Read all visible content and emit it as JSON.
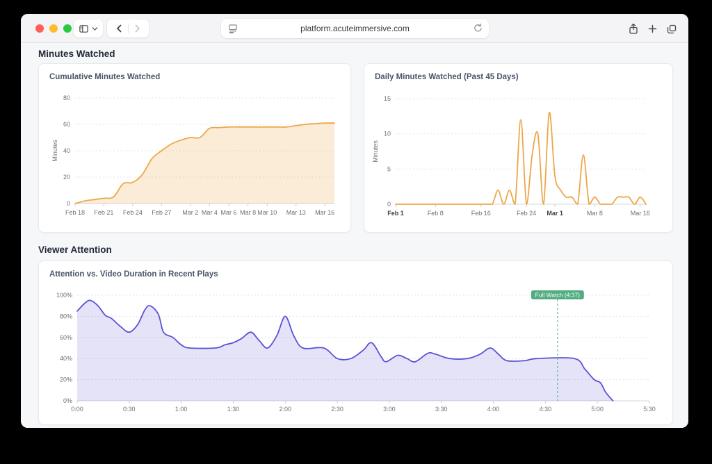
{
  "browser": {
    "url": "platform.acuteimmersive.com",
    "icons": [
      "sidebar-icon",
      "chevron-down-icon",
      "back-icon",
      "forward-icon",
      "page-settings-icon",
      "reload-icon",
      "share-icon",
      "new-tab-icon",
      "tab-overview-icon"
    ],
    "traffic_light_colors": {
      "close": "#ff5f57",
      "minimize": "#febc2e",
      "zoom": "#28c840"
    }
  },
  "sections": [
    {
      "title": "Minutes Watched"
    },
    {
      "title": "Viewer Attention"
    }
  ],
  "colors": {
    "accent_orange": "#eda74a",
    "accent_orange_fill": "rgba(237,167,74,0.22)",
    "accent_purple": "#5a52d6",
    "accent_purple_fill": "rgba(90,82,214,0.16)",
    "badge_green": "#52ad82"
  },
  "chart_data": [
    {
      "id": "cumulative",
      "type": "area",
      "title": "Cumulative Minutes Watched",
      "ylabel": "Minutes",
      "yticks": [
        0,
        20,
        40,
        60,
        80
      ],
      "ylim": [
        0,
        84
      ],
      "categories": [
        "Feb 18",
        "Feb 19",
        "Feb 20",
        "Feb 21",
        "Feb 22",
        "Feb 23",
        "Feb 24",
        "Feb 25",
        "Feb 26",
        "Feb 27",
        "Feb 28",
        "Mar 1",
        "Mar 2",
        "Mar 3",
        "Mar 4",
        "Mar 5",
        "Mar 6",
        "Mar 7",
        "Mar 8",
        "Mar 9",
        "Mar 10",
        "Mar 11",
        "Mar 12",
        "Mar 13",
        "Mar 14",
        "Mar 15",
        "Mar 16",
        "Mar 17"
      ],
      "values": [
        0,
        2,
        3,
        4,
        5,
        15,
        16,
        22,
        34,
        40,
        45,
        48,
        50,
        50,
        57,
        57.5,
        58,
        58,
        58,
        58,
        58,
        58,
        58,
        59,
        60,
        60.5,
        61,
        61
      ],
      "xticks": [
        {
          "label": "Feb 18",
          "index": 0
        },
        {
          "label": "Feb 21",
          "index": 3
        },
        {
          "label": "Feb 24",
          "index": 6
        },
        {
          "label": "Feb 27",
          "index": 9
        },
        {
          "label": "Mar 2",
          "index": 12
        },
        {
          "label": "Mar 4",
          "index": 14
        },
        {
          "label": "Mar 6",
          "index": 16
        },
        {
          "label": "Mar 8",
          "index": 18
        },
        {
          "label": "Mar 10",
          "index": 20
        },
        {
          "label": "Mar 13",
          "index": 23
        },
        {
          "label": "Mar 16",
          "index": 26
        }
      ],
      "color": "#eda74a",
      "fill": "rgba(237,167,74,0.22)",
      "grid": true,
      "legend": "none"
    },
    {
      "id": "daily",
      "type": "line",
      "title": "Daily Minutes Watched (Past 45 Days)",
      "ylabel": "Minutes",
      "yticks": [
        0,
        5,
        10,
        15
      ],
      "ylim": [
        0,
        15.8
      ],
      "categories": [
        "Feb 1",
        "Feb 2",
        "Feb 3",
        "Feb 4",
        "Feb 5",
        "Feb 6",
        "Feb 7",
        "Feb 8",
        "Feb 9",
        "Feb 10",
        "Feb 11",
        "Feb 12",
        "Feb 13",
        "Feb 14",
        "Feb 15",
        "Feb 16",
        "Feb 17",
        "Feb 18",
        "Feb 19",
        "Feb 20",
        "Feb 21",
        "Feb 22",
        "Feb 23",
        "Feb 24",
        "Feb 25",
        "Feb 26",
        "Feb 27",
        "Feb 28",
        "Mar 1",
        "Mar 2",
        "Mar 3",
        "Mar 4",
        "Mar 5",
        "Mar 6",
        "Mar 7",
        "Mar 8",
        "Mar 9",
        "Mar 10",
        "Mar 11",
        "Mar 12",
        "Mar 13",
        "Mar 14",
        "Mar 15",
        "Mar 16",
        "Mar 17"
      ],
      "values": [
        0,
        0,
        0,
        0,
        0,
        0,
        0,
        0,
        0,
        0,
        0,
        0,
        0,
        0,
        0,
        0,
        0,
        0,
        2,
        0,
        2,
        0,
        12,
        0,
        7,
        10,
        0,
        13,
        4,
        2,
        1,
        1,
        0,
        7,
        0,
        1,
        0,
        0,
        0,
        1,
        1,
        1,
        0,
        1,
        0
      ],
      "xticks": [
        {
          "label": "Feb 1",
          "index": 0,
          "bold": true
        },
        {
          "label": "Feb 8",
          "index": 7
        },
        {
          "label": "Feb 16",
          "index": 15
        },
        {
          "label": "Feb 24",
          "index": 23
        },
        {
          "label": "Mar 1",
          "index": 28,
          "bold": true
        },
        {
          "label": "Mar 8",
          "index": 35
        },
        {
          "label": "Mar 16",
          "index": 43
        }
      ],
      "color": "#eda74a",
      "grid": true,
      "legend": "none"
    },
    {
      "id": "attention",
      "type": "area",
      "title": "Attention vs. Video Duration in Recent Plays",
      "ylabel": "",
      "ytick_suffix": "%",
      "yticks": [
        0,
        20,
        40,
        60,
        80,
        100
      ],
      "ylim": [
        0,
        105
      ],
      "xlim": [
        0,
        5.5
      ],
      "x": [
        0,
        0.08,
        0.13,
        0.2,
        0.27,
        0.33,
        0.42,
        0.5,
        0.58,
        0.65,
        0.7,
        0.78,
        0.83,
        0.92,
        1.0,
        1.08,
        1.33,
        1.42,
        1.5,
        1.58,
        1.67,
        1.75,
        1.83,
        1.92,
        2.0,
        2.08,
        2.17,
        2.37,
        2.5,
        2.63,
        2.75,
        2.83,
        2.92,
        2.97,
        3.08,
        3.17,
        3.25,
        3.37,
        3.45,
        3.58,
        3.75,
        3.87,
        3.97,
        4.05,
        4.13,
        4.3,
        4.42,
        4.78,
        4.88,
        4.97,
        5.03,
        5.08,
        5.15
      ],
      "y": [
        85,
        93,
        95,
        90,
        81,
        78,
        70,
        65,
        72,
        86,
        90,
        82,
        65,
        60,
        53,
        50,
        50,
        53,
        55,
        59,
        65,
        57,
        50,
        62,
        80,
        62,
        50,
        50,
        40,
        40,
        48,
        55,
        42,
        37,
        43,
        40,
        37,
        45,
        44,
        40,
        40,
        44,
        50,
        44,
        38,
        38,
        40,
        40,
        30,
        20,
        17,
        8,
        0
      ],
      "xticks": [
        {
          "label": "0:00",
          "x": 0
        },
        {
          "label": "0:30",
          "x": 0.5
        },
        {
          "label": "1:00",
          "x": 1
        },
        {
          "label": "1:30",
          "x": 1.5
        },
        {
          "label": "2:00",
          "x": 2
        },
        {
          "label": "2:30",
          "x": 2.5
        },
        {
          "label": "3:00",
          "x": 3
        },
        {
          "label": "3:30",
          "x": 3.5
        },
        {
          "label": "4:00",
          "x": 4
        },
        {
          "label": "4:30",
          "x": 4.5
        },
        {
          "label": "5:00",
          "x": 5
        },
        {
          "label": "5:30",
          "x": 5.5
        }
      ],
      "marker": {
        "x": 4.6167,
        "label": "Full Watch (4:37)",
        "color": "#52ad82"
      },
      "color": "#5a52d6",
      "fill": "rgba(90,82,214,0.16)",
      "grid": true,
      "legend": "none"
    }
  ]
}
